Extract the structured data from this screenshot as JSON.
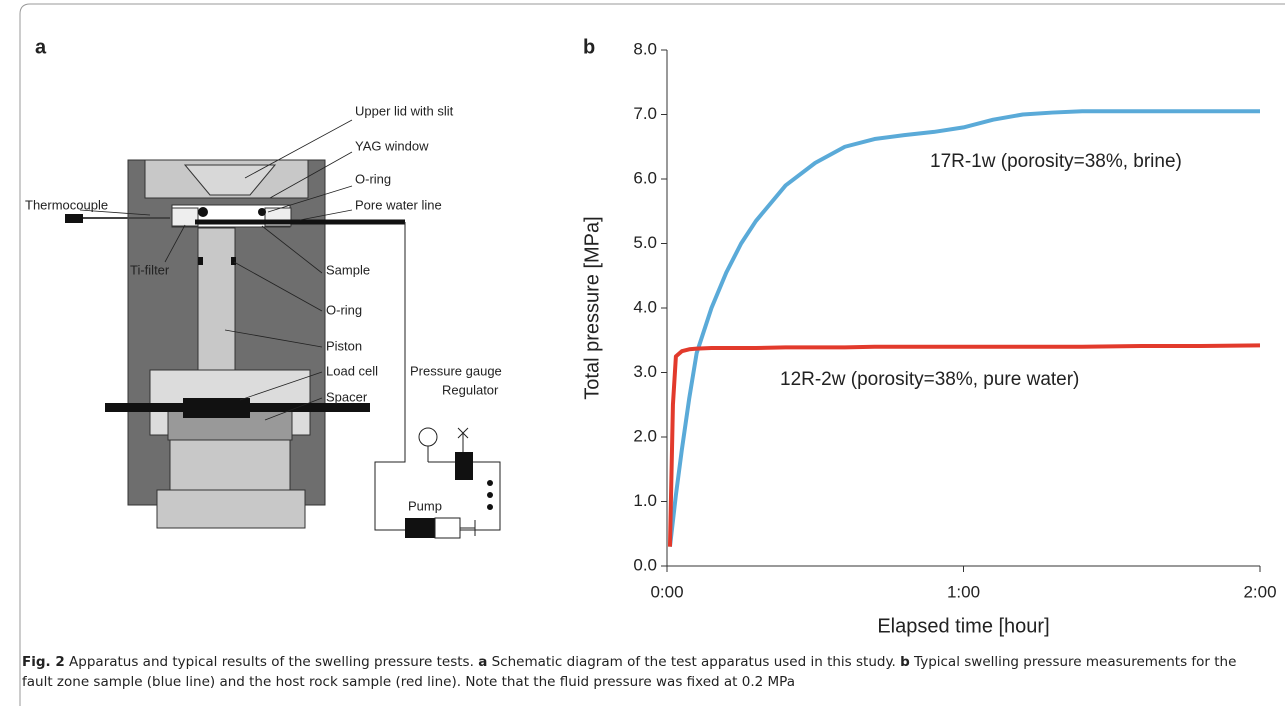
{
  "panel_labels": {
    "a": "a",
    "b": "b"
  },
  "diagram": {
    "labels": [
      "Upper lid with slit",
      "YAG window",
      "O-ring",
      "Thermocouple",
      "Pore water line",
      "Ti-filter",
      "Sample",
      "O-ring",
      "Piston",
      "Load cell",
      "Spacer",
      "Pressure gauge",
      "Regulator",
      "Pump"
    ]
  },
  "chart_data": {
    "type": "line",
    "x_label": "Elapsed time [hour]",
    "y_label": "Total pressure [MPa]",
    "x": [
      0.01,
      0.02,
      0.03,
      0.05,
      0.075,
      0.1,
      0.15,
      0.2,
      0.25,
      0.3,
      0.4,
      0.5,
      0.6,
      0.7,
      0.8,
      0.9,
      1.0,
      1.1,
      1.2,
      1.3,
      1.4,
      1.6,
      1.8,
      2.0
    ],
    "series": [
      {
        "name": "17R-1w (porosity=38%, brine)",
        "color": "#5aaad8",
        "values": [
          0.3,
          0.7,
          1.1,
          1.8,
          2.6,
          3.3,
          4.0,
          4.55,
          5.0,
          5.35,
          5.9,
          6.25,
          6.5,
          6.62,
          6.68,
          6.73,
          6.8,
          6.92,
          7.0,
          7.03,
          7.05,
          7.05,
          7.05,
          7.05
        ]
      },
      {
        "name": "12R-2w (porosity=38%, pure water)",
        "color": "#e23a2c",
        "values": [
          0.3,
          2.5,
          3.25,
          3.33,
          3.36,
          3.37,
          3.38,
          3.38,
          3.38,
          3.38,
          3.39,
          3.39,
          3.39,
          3.4,
          3.4,
          3.4,
          3.4,
          3.4,
          3.4,
          3.4,
          3.4,
          3.41,
          3.41,
          3.42
        ]
      }
    ],
    "xlim": [
      0,
      2
    ],
    "xticks": [
      {
        "value": 0,
        "label": "0:00"
      },
      {
        "value": 1,
        "label": "1:00"
      },
      {
        "value": 2,
        "label": "2:00"
      }
    ],
    "ylim": [
      0,
      8
    ],
    "yticks": [
      {
        "value": 0,
        "label": "0.0"
      },
      {
        "value": 1,
        "label": "1.0"
      },
      {
        "value": 2,
        "label": "2.0"
      },
      {
        "value": 3,
        "label": "3.0"
      },
      {
        "value": 4,
        "label": "4.0"
      },
      {
        "value": 5,
        "label": "5.0"
      },
      {
        "value": 6,
        "label": "6.0"
      },
      {
        "value": 7,
        "label": "7.0"
      },
      {
        "value": 8,
        "label": "8.0"
      }
    ],
    "grid": false
  },
  "caption": {
    "figure_label": "Fig. 2",
    "text_1": " Apparatus and typical results of the swelling pressure tests. ",
    "panel_a": "a",
    "text_2": " Schematic diagram of the test apparatus used in this study. ",
    "panel_b": "b",
    "text_3": " Typical swelling pressure measurements for the fault zone sample (blue line) and the host rock sample (red line). Note that the fluid pressure was fixed at 0.2 MPa"
  }
}
